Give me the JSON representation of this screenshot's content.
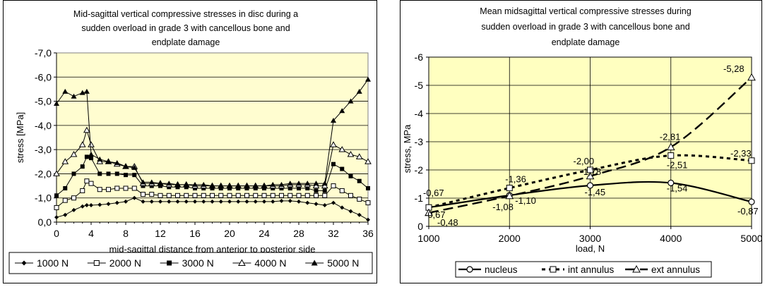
{
  "chart_data": [
    {
      "type": "line",
      "title_lines": [
        "Mid-sagittal vertical compressive stresses in disc during a",
        "sudden overload in grade 3 with cancellous bone and",
        "endplate damage"
      ],
      "xlabel": "mid-sagittal distance from anterior to posterior side",
      "ylabel": "stress [MPa]",
      "xlim": [
        0,
        36
      ],
      "ylim": [
        0,
        -7
      ],
      "y_reversed": true,
      "x_ticks": [
        "0",
        "4",
        "8",
        "12",
        "16",
        "20",
        "24",
        "28",
        "32",
        "36"
      ],
      "y_ticks": [
        "0,0",
        "-1,0",
        "-2,0",
        "-3,0",
        "-4,0",
        "-5,0",
        "-6,0",
        "-7,0"
      ],
      "grid": "horizontal",
      "plot_background": "#fffdd0",
      "legend_position": "bottom",
      "x": [
        0,
        1,
        2,
        3,
        3.5,
        4,
        5,
        6,
        7,
        8,
        9,
        10,
        11,
        12,
        13,
        14,
        15,
        16,
        17,
        18,
        19,
        20,
        21,
        22,
        23,
        24,
        25,
        26,
        27,
        28,
        29,
        30,
        31,
        32,
        33,
        34,
        35,
        36
      ],
      "series": [
        {
          "name": "1000 N",
          "marker": "diamond",
          "values": [
            -0.2,
            -0.3,
            -0.5,
            -0.65,
            -0.7,
            -0.7,
            -0.72,
            -0.75,
            -0.8,
            -0.85,
            -1.0,
            -0.85,
            -0.85,
            -0.85,
            -0.85,
            -0.85,
            -0.85,
            -0.85,
            -0.85,
            -0.85,
            -0.85,
            -0.85,
            -0.85,
            -0.85,
            -0.85,
            -0.85,
            -0.85,
            -0.88,
            -0.88,
            -0.85,
            -0.8,
            -0.75,
            -0.7,
            -0.8,
            -0.6,
            -0.45,
            -0.3,
            -0.1
          ]
        },
        {
          "name": "2000 N",
          "marker": "square",
          "values": [
            -0.6,
            -0.9,
            -1.0,
            -1.3,
            -1.7,
            -1.6,
            -1.35,
            -1.35,
            -1.4,
            -1.4,
            -1.4,
            -1.15,
            -1.15,
            -1.1,
            -1.1,
            -1.1,
            -1.1,
            -1.1,
            -1.1,
            -1.1,
            -1.1,
            -1.1,
            -1.1,
            -1.1,
            -1.1,
            -1.1,
            -1.1,
            -1.1,
            -1.1,
            -1.1,
            -1.1,
            -1.1,
            -1.1,
            -1.5,
            -1.3,
            -1.1,
            -0.95,
            -0.8
          ]
        },
        {
          "name": "3000 N",
          "marker": "filled-square",
          "values": [
            -1.1,
            -1.4,
            -2.0,
            -2.3,
            -2.7,
            -2.65,
            -2.0,
            -2.0,
            -2.0,
            -1.95,
            -1.95,
            -1.5,
            -1.5,
            -1.5,
            -1.45,
            -1.45,
            -1.45,
            -1.4,
            -1.4,
            -1.4,
            -1.4,
            -1.4,
            -1.4,
            -1.4,
            -1.4,
            -1.4,
            -1.4,
            -1.4,
            -1.4,
            -1.4,
            -1.4,
            -1.3,
            -1.3,
            -2.4,
            -2.2,
            -1.9,
            -1.7,
            -1.4
          ]
        },
        {
          "name": "4000 N",
          "marker": "triangle",
          "values": [
            -2.0,
            -2.5,
            -2.8,
            -3.2,
            -3.8,
            -3.2,
            -2.5,
            -2.5,
            -2.4,
            -2.3,
            -2.3,
            -1.6,
            -1.6,
            -1.6,
            -1.55,
            -1.55,
            -1.55,
            -1.5,
            -1.5,
            -1.5,
            -1.5,
            -1.5,
            -1.5,
            -1.5,
            -1.5,
            -1.5,
            -1.5,
            -1.5,
            -1.55,
            -1.55,
            -1.55,
            -1.5,
            -1.5,
            -3.2,
            -3.0,
            -2.8,
            -2.7,
            -2.5
          ]
        },
        {
          "name": "5000 N",
          "marker": "filled-triangle",
          "values": [
            -4.9,
            -5.4,
            -5.2,
            -5.35,
            -5.4,
            -2.8,
            -2.6,
            -2.5,
            -2.45,
            -2.3,
            -2.25,
            -1.65,
            -1.65,
            -1.6,
            -1.6,
            -1.55,
            -1.55,
            -1.55,
            -1.55,
            -1.5,
            -1.5,
            -1.5,
            -1.5,
            -1.5,
            -1.5,
            -1.5,
            -1.55,
            -1.55,
            -1.6,
            -1.6,
            -1.6,
            -1.6,
            -1.6,
            -4.2,
            -4.6,
            -5.0,
            -5.4,
            -5.9
          ]
        }
      ]
    },
    {
      "type": "line",
      "title_lines": [
        "Mean midsagittal vertical compressive stresses during",
        "sudden overload in grade 3 with cancellous bone and",
        "endplate damage"
      ],
      "xlabel": "load, N",
      "ylabel": "stress, MPa",
      "xlim": [
        1000,
        5000
      ],
      "ylim": [
        0,
        -6
      ],
      "y_reversed": true,
      "x_ticks": [
        "1000",
        "2000",
        "3000",
        "4000",
        "5000"
      ],
      "y_ticks": [
        "0",
        "-1",
        "-2",
        "-3",
        "-4",
        "-5",
        "-6"
      ],
      "grid": "both",
      "plot_background": "#ffffc0",
      "legend_position": "bottom",
      "x": [
        1000,
        2000,
        3000,
        4000,
        5000
      ],
      "series": [
        {
          "name": "nucleus",
          "marker": "circle",
          "line_style": "solid",
          "values": [
            -0.67,
            -1.1,
            -1.45,
            -1.54,
            -0.87
          ],
          "labels": [
            "-0,67",
            "-1,10",
            "-1,45",
            "-1,54",
            "-0,87"
          ]
        },
        {
          "name": "int annulus",
          "marker": "square",
          "line_style": "dotted",
          "values": [
            -0.67,
            -1.36,
            -2.0,
            -2.51,
            -2.33
          ],
          "labels": [
            "-0,67",
            "-1,36",
            "-2,00",
            "-2,51",
            "-2,33"
          ]
        },
        {
          "name": "ext annulus",
          "marker": "triangle",
          "line_style": "dashed",
          "values": [
            -0.48,
            -1.08,
            -1.78,
            -2.81,
            -5.28
          ],
          "labels": [
            "-0,48",
            "-1,08",
            "-1,78",
            "-2,81",
            "-5,28"
          ]
        }
      ]
    }
  ]
}
